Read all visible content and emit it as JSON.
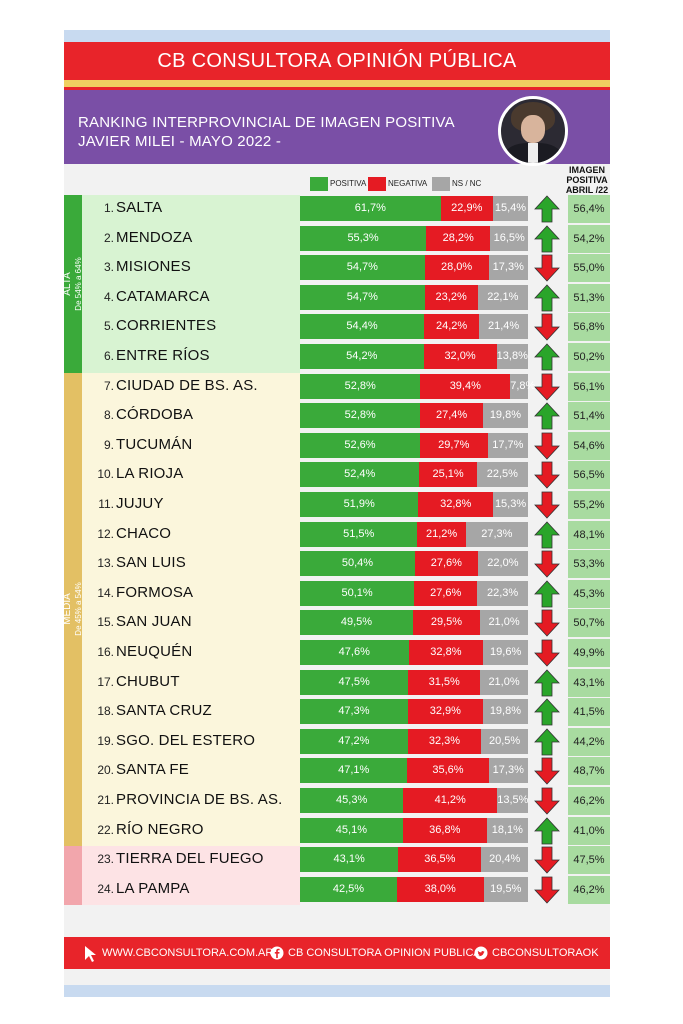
{
  "header": {
    "title": "CB CONSULTORA OPINIÓN PÚBLICA",
    "subtitle_line1": "RANKING INTERPROVINCIAL DE IMAGEN POSITIVA",
    "subtitle_line2": "JAVIER MILEI - MAYO 2022 -"
  },
  "legend": [
    {
      "label": "POSITIVA",
      "color": "#3aaa3a"
    },
    {
      "label": "NEGATIVA",
      "color": "#e51b23"
    },
    {
      "label": "NS / NC",
      "color": "#a6a6a6"
    }
  ],
  "april_header": [
    "IMAGEN",
    "POSITIVA",
    "ABRIL /22"
  ],
  "groups": [
    {
      "name": "ALTA",
      "range": "De 54% a 64%",
      "color": "#3aaa3a",
      "bg": "#d8f3d2",
      "start": 0,
      "end": 5
    },
    {
      "name": "MEDIA",
      "range": "De 45% a 54%",
      "color": "#e3c064",
      "bg": "#fbf6dc",
      "start": 6,
      "end": 21
    },
    {
      "name": "",
      "range": "",
      "color": "#f2a6ac",
      "bg": "#fde3e5",
      "start": 22,
      "end": 23
    }
  ],
  "chart_data": {
    "type": "bar",
    "stacked": true,
    "orientation": "horizontal",
    "categories": [
      "SALTA",
      "MENDOZA",
      "MISIONES",
      "CATAMARCA",
      "CORRIENTES",
      "ENTRE RÍOS",
      "CIUDAD DE BS. AS.",
      "CÓRDOBA",
      "TUCUMÁN",
      "LA RIOJA",
      "JUJUY",
      "CHACO",
      "SAN LUIS",
      "FORMOSA",
      "SAN JUAN",
      "NEUQUÉN",
      "CHUBUT",
      "SANTA CRUZ",
      "SGO. DEL ESTERO",
      "SANTA FE",
      "PROVINCIA DE BS. AS.",
      "RÍO NEGRO",
      "TIERRA DEL FUEGO",
      "LA PAMPA"
    ],
    "ranks": [
      "1.",
      "2.",
      "3.",
      "4.",
      "5.",
      "6.",
      "7.",
      "8.",
      "9.",
      "10.",
      "11.",
      "12.",
      "13.",
      "14.",
      "15.",
      "16.",
      "17.",
      "18.",
      "19.",
      "20.",
      "21.",
      "22.",
      "23.",
      "24."
    ],
    "series": [
      {
        "name": "POSITIVA",
        "color": "#3aaa3a",
        "values": [
          61.7,
          55.3,
          54.7,
          54.7,
          54.4,
          54.2,
          52.8,
          52.8,
          52.6,
          52.4,
          51.9,
          51.5,
          50.4,
          50.1,
          49.5,
          47.6,
          47.5,
          47.3,
          47.2,
          47.1,
          45.3,
          45.1,
          43.1,
          42.5
        ]
      },
      {
        "name": "NEGATIVA",
        "color": "#e51b23",
        "values": [
          22.9,
          28.2,
          28.0,
          23.2,
          24.2,
          32.0,
          39.4,
          27.4,
          29.7,
          25.1,
          32.8,
          21.2,
          27.6,
          27.6,
          29.5,
          32.8,
          31.5,
          32.9,
          32.3,
          35.6,
          41.2,
          36.8,
          36.5,
          38.0
        ]
      },
      {
        "name": "NS / NC",
        "color": "#a6a6a6",
        "values": [
          15.4,
          16.5,
          17.3,
          22.1,
          21.4,
          13.8,
          7.8,
          19.8,
          17.7,
          22.5,
          15.3,
          27.3,
          22.0,
          22.3,
          21.0,
          19.6,
          21.0,
          19.8,
          20.5,
          17.3,
          13.5,
          18.1,
          20.4,
          19.5
        ]
      }
    ],
    "labels": {
      "POSITIVA": [
        "61,7%",
        "55,3%",
        "54,7%",
        "54,7%",
        "54,4%",
        "54,2%",
        "52,8%",
        "52,8%",
        "52,6%",
        "52,4%",
        "51,9%",
        "51,5%",
        "50,4%",
        "50,1%",
        "49,5%",
        "47,6%",
        "47,5%",
        "47,3%",
        "47,2%",
        "47,1%",
        "45,3%",
        "45,1%",
        "43,1%",
        "42,5%"
      ],
      "NEGATIVA": [
        "22,9%",
        "28,2%",
        "28,0%",
        "23,2%",
        "24,2%",
        "32,0%",
        "39,4%",
        "27,4%",
        "29,7%",
        "25,1%",
        "32,8%",
        "21,2%",
        "27,6%",
        "27,6%",
        "29,5%",
        "32,8%",
        "31,5%",
        "32,9%",
        "32,3%",
        "35,6%",
        "41,2%",
        "36,8%",
        "36,5%",
        "38,0%"
      ],
      "NS / NC": [
        "15,4%",
        "16,5%",
        "17,3%",
        "22,1%",
        "21,4%",
        "13,8%",
        "7,8%",
        "19,8%",
        "17,7%",
        "22,5%",
        "15,3%",
        "27,3%",
        "22,0%",
        "22,3%",
        "21,0%",
        "19,6%",
        "21,0%",
        "19,8%",
        "20,5%",
        "17,3%",
        "13,5%",
        "18,1%",
        "20,4%",
        "19,5%"
      ]
    },
    "trend": [
      "up",
      "up",
      "down",
      "up",
      "down",
      "up",
      "down",
      "up",
      "down",
      "down",
      "down",
      "up",
      "down",
      "up",
      "down",
      "down",
      "up",
      "up",
      "up",
      "down",
      "down",
      "up",
      "down",
      "down"
    ],
    "trend_colors": {
      "up": "#2aa52a",
      "down": "#e51b23"
    },
    "april_values": [
      56.4,
      54.2,
      55.0,
      51.3,
      56.8,
      50.2,
      56.1,
      51.4,
      54.6,
      56.5,
      55.2,
      48.1,
      53.3,
      45.3,
      50.7,
      49.9,
      43.1,
      41.5,
      44.2,
      48.7,
      46.2,
      41.0,
      47.5,
      46.2
    ],
    "april_labels": [
      "56,4%",
      "54,2%",
      "55,0%",
      "51,3%",
      "56,8%",
      "50,2%",
      "56,1%",
      "51,4%",
      "54,6%",
      "56,5%",
      "55,2%",
      "48,1%",
      "53,3%",
      "45,3%",
      "50,7%",
      "49,9%",
      "43,1%",
      "41,5%",
      "44,2%",
      "48,7%",
      "46,2%",
      "41,0%",
      "47,5%",
      "46,2%"
    ],
    "xlim": [
      0,
      100
    ]
  },
  "footer": {
    "web": "WWW.CBCONSULTORA.COM.AR",
    "facebook": "CB CONSULTORA OPINION PUBLICA",
    "twitter": "CBCONSULTORAOK"
  }
}
